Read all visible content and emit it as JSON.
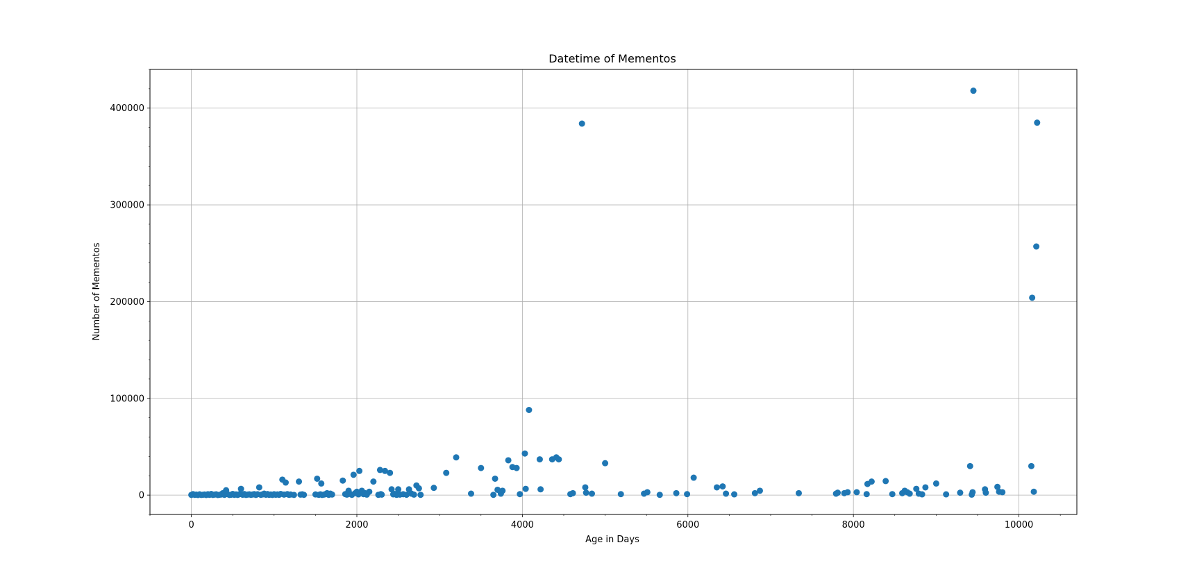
{
  "chart_data": {
    "type": "scatter",
    "title": "Datetime of Mementos",
    "xlabel": "Age in Days",
    "ylabel": "Number of Mementos",
    "xlim": [
      -500,
      10700
    ],
    "ylim": [
      -20000,
      440000
    ],
    "xticks": [
      0,
      2000,
      4000,
      6000,
      8000,
      10000
    ],
    "yticks": [
      0,
      100000,
      200000,
      300000,
      400000
    ],
    "x_minor_step": 500,
    "y_minor_step": 20000,
    "grid": true,
    "legend": "none",
    "marker_color": "#1f77b4",
    "series": [
      {
        "points": [
          [
            0,
            200
          ],
          [
            20,
            1000
          ],
          [
            40,
            300
          ],
          [
            60,
            500
          ],
          [
            80,
            100
          ],
          [
            100,
            800
          ],
          [
            120,
            200
          ],
          [
            140,
            400
          ],
          [
            160,
            600
          ],
          [
            180,
            100
          ],
          [
            200,
            900
          ],
          [
            220,
            300
          ],
          [
            240,
            1200
          ],
          [
            260,
            200
          ],
          [
            280,
            500
          ],
          [
            300,
            800
          ],
          [
            320,
            100
          ],
          [
            340,
            400
          ],
          [
            360,
            600
          ],
          [
            380,
            2000
          ],
          [
            400,
            300
          ],
          [
            420,
            5000
          ],
          [
            440,
            900
          ],
          [
            460,
            200
          ],
          [
            480,
            400
          ],
          [
            500,
            1200
          ],
          [
            520,
            300
          ],
          [
            540,
            700
          ],
          [
            560,
            200
          ],
          [
            580,
            900
          ],
          [
            600,
            6500
          ],
          [
            620,
            400
          ],
          [
            640,
            1100
          ],
          [
            660,
            200
          ],
          [
            680,
            500
          ],
          [
            700,
            800
          ],
          [
            720,
            300
          ],
          [
            740,
            600
          ],
          [
            760,
            1000
          ],
          [
            780,
            200
          ],
          [
            800,
            900
          ],
          [
            820,
            8000
          ],
          [
            840,
            300
          ],
          [
            860,
            700
          ],
          [
            880,
            1500
          ],
          [
            900,
            400
          ],
          [
            920,
            1100
          ],
          [
            940,
            300
          ],
          [
            960,
            600
          ],
          [
            980,
            200
          ],
          [
            1000,
            900
          ],
          [
            1020,
            400
          ],
          [
            1040,
            700
          ],
          [
            1060,
            300
          ],
          [
            1080,
            1200
          ],
          [
            1100,
            16000
          ],
          [
            1120,
            500
          ],
          [
            1140,
            13000
          ],
          [
            1160,
            1000
          ],
          [
            1180,
            300
          ],
          [
            1200,
            600
          ],
          [
            1240,
            200
          ],
          [
            1300,
            14000
          ],
          [
            1320,
            500
          ],
          [
            1340,
            800
          ],
          [
            1360,
            300
          ],
          [
            1500,
            700
          ],
          [
            1520,
            17000
          ],
          [
            1540,
            300
          ],
          [
            1560,
            800
          ],
          [
            1570,
            12000
          ],
          [
            1580,
            200
          ],
          [
            1600,
            500
          ],
          [
            1620,
            900
          ],
          [
            1640,
            2000
          ],
          [
            1660,
            300
          ],
          [
            1680,
            1500
          ],
          [
            1700,
            600
          ],
          [
            1830,
            15000
          ],
          [
            1860,
            1000
          ],
          [
            1880,
            500
          ],
          [
            1900,
            4500
          ],
          [
            1920,
            1200
          ],
          [
            1940,
            300
          ],
          [
            1960,
            21000
          ],
          [
            1980,
            2000
          ],
          [
            2000,
            3500
          ],
          [
            2020,
            800
          ],
          [
            2030,
            25000
          ],
          [
            2060,
            4500
          ],
          [
            2080,
            1000
          ],
          [
            2100,
            2000
          ],
          [
            2120,
            500
          ],
          [
            2150,
            3500
          ],
          [
            2200,
            14000
          ],
          [
            2260,
            300
          ],
          [
            2280,
            26000
          ],
          [
            2290,
            1000
          ],
          [
            2300,
            500
          ],
          [
            2340,
            25000
          ],
          [
            2400,
            23000
          ],
          [
            2420,
            6000
          ],
          [
            2440,
            800
          ],
          [
            2460,
            1200
          ],
          [
            2480,
            300
          ],
          [
            2500,
            6000
          ],
          [
            2520,
            500
          ],
          [
            2560,
            900
          ],
          [
            2600,
            400
          ],
          [
            2630,
            6000
          ],
          [
            2660,
            1500
          ],
          [
            2690,
            500
          ],
          [
            2720,
            10000
          ],
          [
            2750,
            7000
          ],
          [
            2770,
            300
          ],
          [
            2930,
            7500
          ],
          [
            3080,
            23000
          ],
          [
            3200,
            39000
          ],
          [
            3380,
            1500
          ],
          [
            3500,
            28000
          ],
          [
            3650,
            300
          ],
          [
            3670,
            17000
          ],
          [
            3700,
            5500
          ],
          [
            3740,
            1500
          ],
          [
            3760,
            4500
          ],
          [
            3830,
            36000
          ],
          [
            3880,
            29000
          ],
          [
            3930,
            28000
          ],
          [
            3970,
            1000
          ],
          [
            4030,
            43000
          ],
          [
            4040,
            6500
          ],
          [
            4080,
            88000
          ],
          [
            4210,
            37000
          ],
          [
            4220,
            6000
          ],
          [
            4360,
            37000
          ],
          [
            4410,
            39000
          ],
          [
            4440,
            37000
          ],
          [
            4580,
            1000
          ],
          [
            4610,
            2000
          ],
          [
            4720,
            384000
          ],
          [
            4760,
            8000
          ],
          [
            4770,
            2500
          ],
          [
            4840,
            1500
          ],
          [
            5000,
            33000
          ],
          [
            5190,
            1000
          ],
          [
            5470,
            1500
          ],
          [
            5510,
            3000
          ],
          [
            5660,
            300
          ],
          [
            5860,
            2000
          ],
          [
            5990,
            1000
          ],
          [
            6070,
            18000
          ],
          [
            6350,
            8000
          ],
          [
            6420,
            9000
          ],
          [
            6460,
            1500
          ],
          [
            6560,
            800
          ],
          [
            6810,
            2000
          ],
          [
            6870,
            4500
          ],
          [
            7340,
            2000
          ],
          [
            7790,
            1500
          ],
          [
            7810,
            2500
          ],
          [
            7890,
            2000
          ],
          [
            7930,
            3000
          ],
          [
            8040,
            3000
          ],
          [
            8160,
            1000
          ],
          [
            8170,
            11500
          ],
          [
            8220,
            14000
          ],
          [
            8390,
            14500
          ],
          [
            8470,
            1000
          ],
          [
            8590,
            2000
          ],
          [
            8620,
            4500
          ],
          [
            8650,
            3000
          ],
          [
            8680,
            1500
          ],
          [
            8760,
            6500
          ],
          [
            8790,
            1500
          ],
          [
            8830,
            800
          ],
          [
            8870,
            8000
          ],
          [
            9000,
            12000
          ],
          [
            9120,
            800
          ],
          [
            9290,
            2500
          ],
          [
            9410,
            30000
          ],
          [
            9430,
            500
          ],
          [
            9440,
            3000
          ],
          [
            9450,
            418000
          ],
          [
            9590,
            6000
          ],
          [
            9600,
            2500
          ],
          [
            9740,
            8500
          ],
          [
            9760,
            3500
          ],
          [
            9800,
            3000
          ],
          [
            10150,
            30000
          ],
          [
            10160,
            204000
          ],
          [
            10180,
            3500
          ],
          [
            10210,
            257000
          ],
          [
            10220,
            385000
          ]
        ]
      }
    ]
  }
}
